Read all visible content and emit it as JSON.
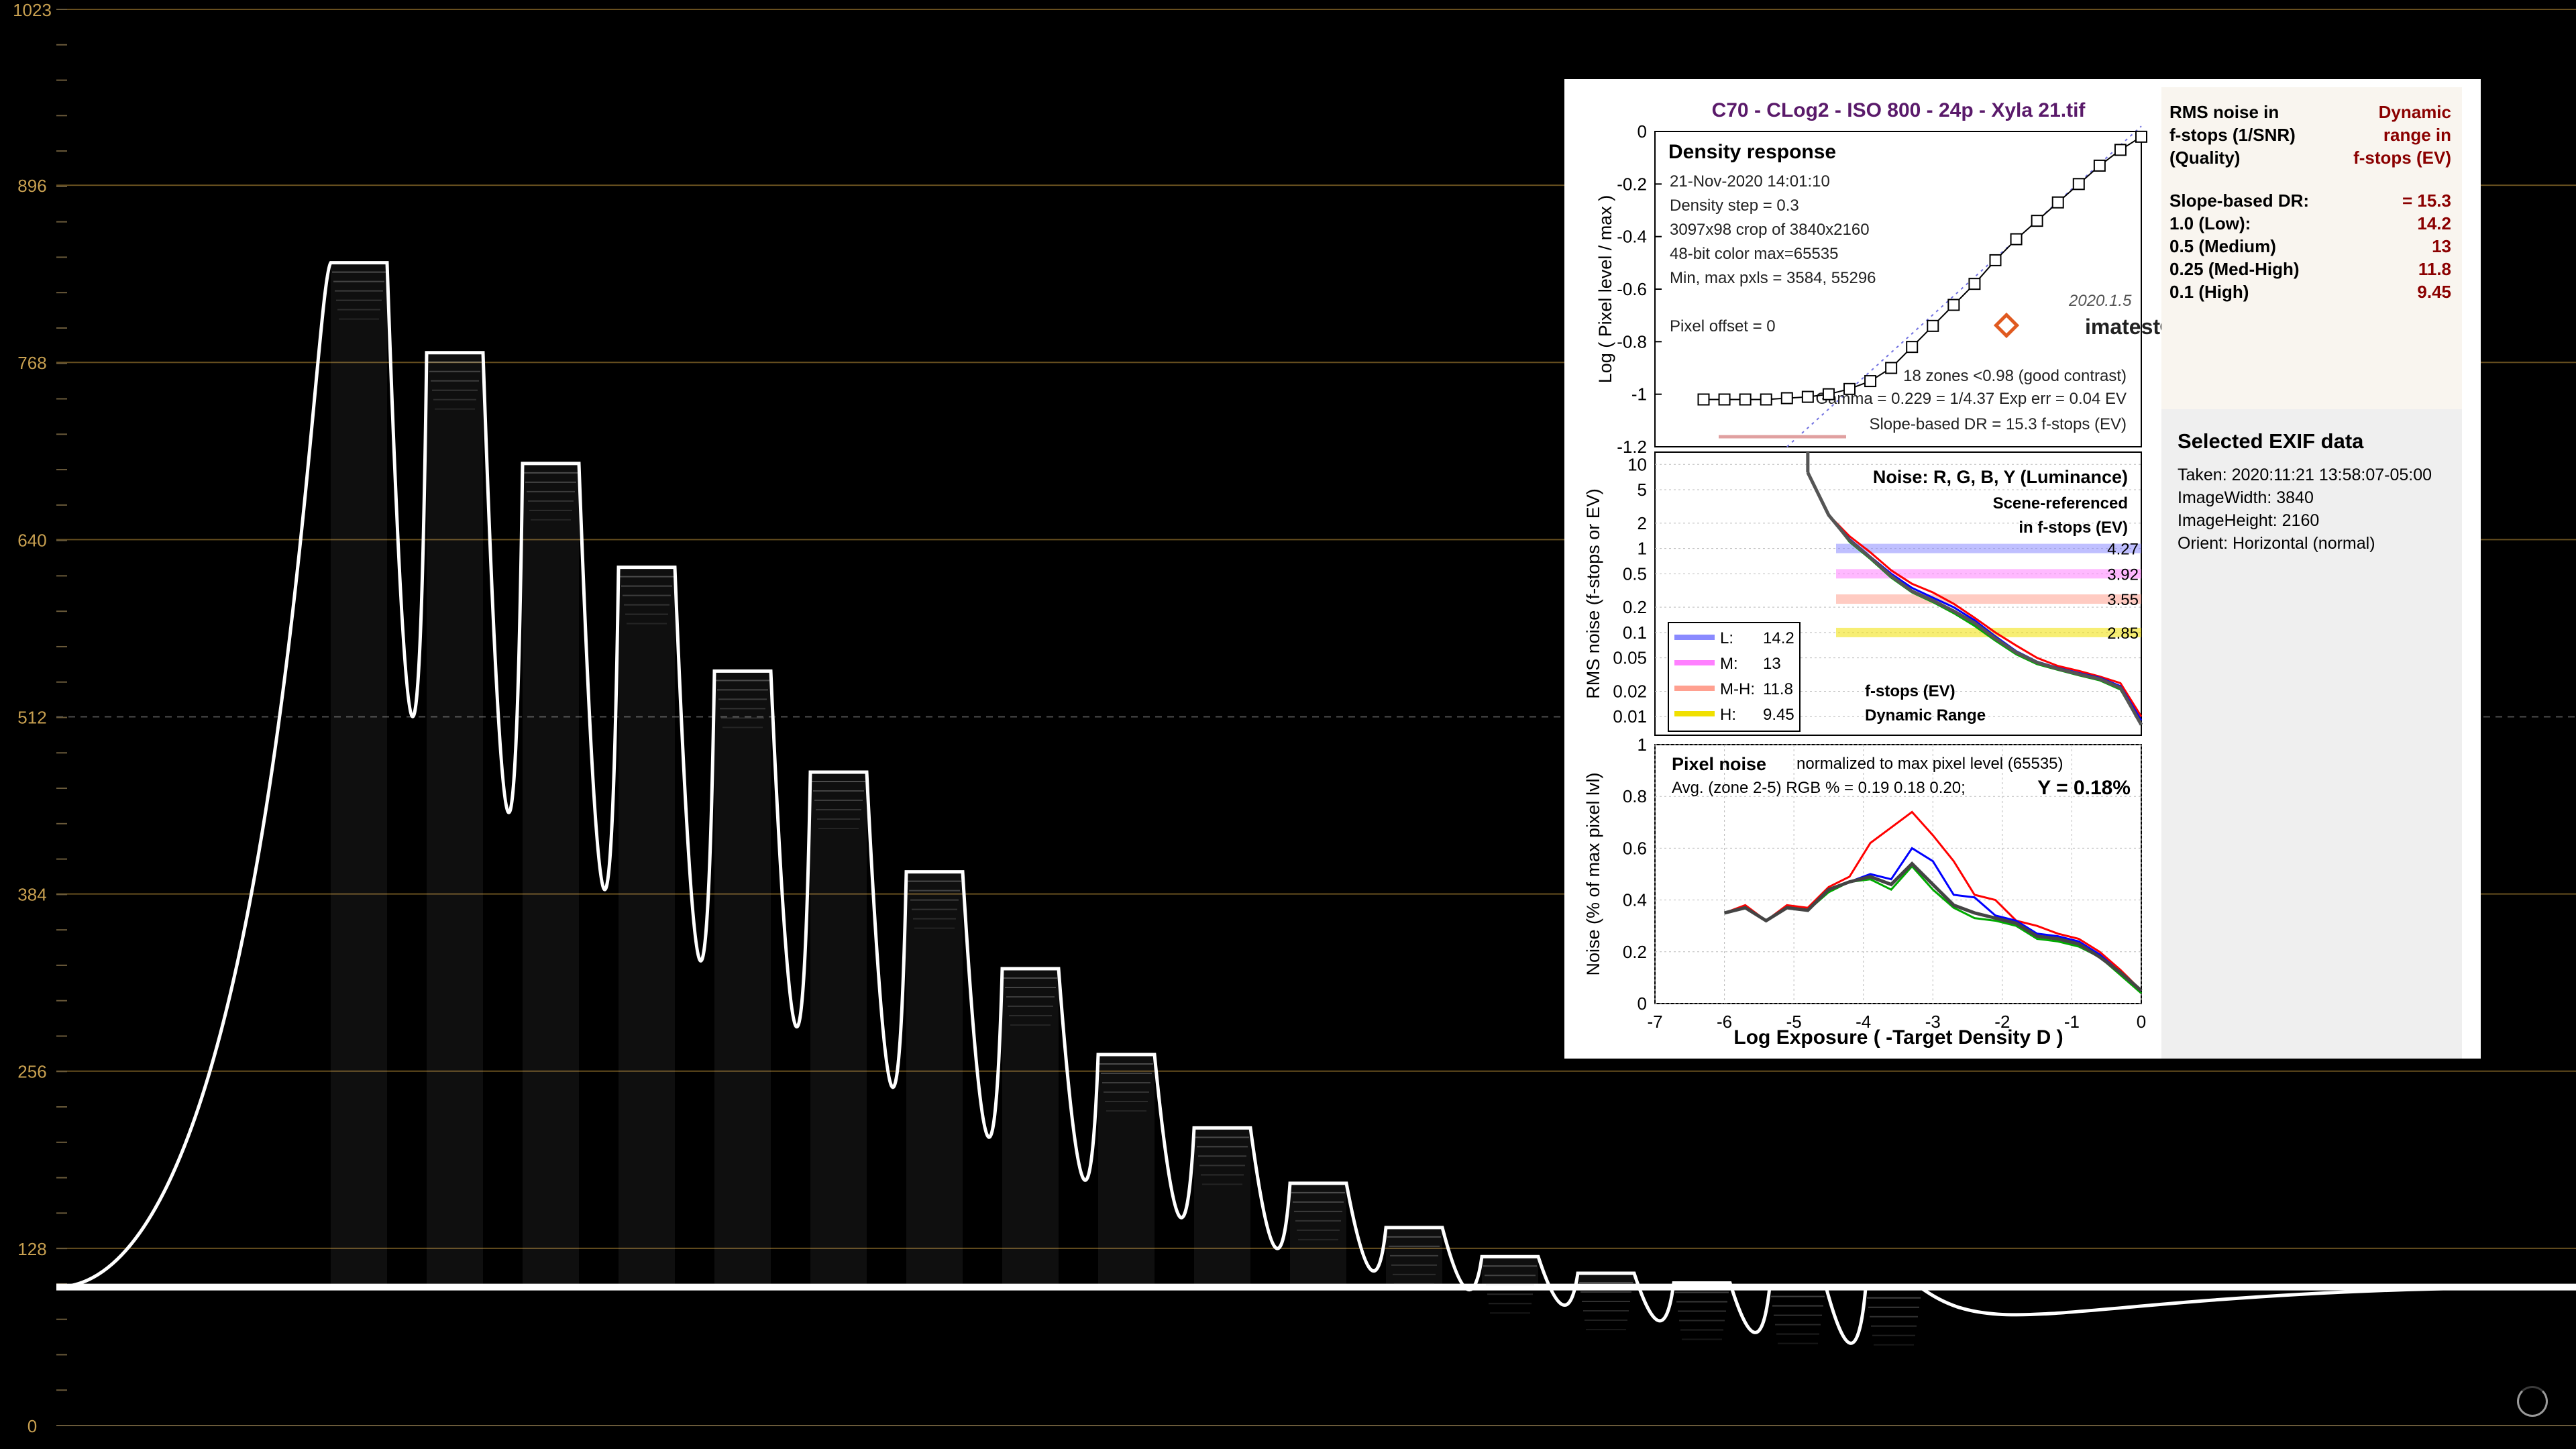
{
  "waveform": {
    "y_ticks": [
      "1023",
      "896",
      "768",
      "640",
      "512",
      "384",
      "256",
      "128",
      "0"
    ],
    "grid_color": "#8a6a2a",
    "tick_color": "#c8a050",
    "trace_color": "#ffffff",
    "chart_data": {
      "type": "line",
      "ylim": [
        0,
        1023
      ],
      "xlabel": "",
      "ylabel": "",
      "step_peaks": [
        840,
        775,
        695,
        620,
        545,
        472,
        400,
        330,
        268,
        215,
        175,
        143,
        122,
        110,
        103,
        100,
        99
      ],
      "baseline": 100
    }
  },
  "panel": {
    "title": "C70 - CLog2 - ISO 800 - 24p - Xyla 21.tif",
    "title_color": "#5a1a6a",
    "density": {
      "heading": "Density response",
      "info": [
        "21-Nov-2020 14:01:10",
        "Density step = 0.3",
        "3097x98 crop of 3840x2160",
        "48-bit color  max=65535",
        "Min, max pxls = 3584, 55296",
        "",
        "Pixel offset = 0"
      ],
      "version": "2020.1.5",
      "brand": "imatest",
      "zones_text": "18 zones <0.98 (good contrast)",
      "gamma_text": "Gamma = 0.229 = 1/4.37  Exp err = 0.04 EV",
      "dr_text": "Slope-based DR = 15.3 f-stops (EV)",
      "ylabel": "Log ( Pixel level / max )",
      "y_ticks": [
        "0",
        "-0.2",
        "-0.4",
        "-0.6",
        "-0.8",
        "-1",
        "-1.2"
      ],
      "chart_data": {
        "type": "line",
        "x": [
          -6.3,
          -6.0,
          -5.7,
          -5.4,
          -5.1,
          -4.8,
          -4.5,
          -4.2,
          -3.9,
          -3.6,
          -3.3,
          -3.0,
          -2.7,
          -2.4,
          -2.1,
          -1.8,
          -1.5,
          -1.2,
          -0.9,
          -0.6,
          -0.3,
          0.0
        ],
        "y": [
          -1.02,
          -1.02,
          -1.02,
          -1.02,
          -1.015,
          -1.01,
          -1.0,
          -0.98,
          -0.95,
          -0.9,
          -0.82,
          -0.74,
          -0.66,
          -0.58,
          -0.49,
          -0.41,
          -0.34,
          -0.27,
          -0.2,
          -0.13,
          -0.07,
          -0.02
        ],
        "xlim": [
          -7,
          0
        ],
        "ylim": [
          -1.2,
          0
        ]
      }
    },
    "noise": {
      "heading": "Noise: R, G, B, Y (Luminance)",
      "subheading1": "Scene-referenced",
      "subheading2": "in f-stops (EV)",
      "ylabel": "RMS noise (f-stops or EV)",
      "y_ticks": [
        "10",
        "5",
        "2",
        "1",
        "0.5",
        "0.2",
        "0.1",
        "0.05",
        "0.02",
        "0.01"
      ],
      "band_values": [
        "4.27",
        "3.92",
        "3.55",
        "2.85"
      ],
      "dr_label1": "f-stops (EV)",
      "dr_label2": "Dynamic Range",
      "legend": [
        {
          "key": "L:",
          "value": "14.2",
          "color": "#8a8aff"
        },
        {
          "key": "M:",
          "value": "13",
          "color": "#ff80ff"
        },
        {
          "key": "M-H:",
          "value": "11.8",
          "color": "#ffa090"
        },
        {
          "key": "H:",
          "value": "9.45",
          "color": "#f0e000"
        }
      ],
      "chart_data": {
        "type": "line",
        "x": [
          -4.8,
          -4.5,
          -4.2,
          -3.9,
          -3.6,
          -3.3,
          -3.0,
          -2.7,
          -2.4,
          -2.1,
          -1.8,
          -1.5,
          -1.2,
          -0.9,
          -0.6,
          -0.3,
          0.0
        ],
        "series": [
          {
            "color": "#ff0000",
            "values": [
              8.0,
              2.5,
              1.4,
              0.9,
              0.55,
              0.38,
              0.3,
              0.22,
              0.15,
              0.1,
              0.07,
              0.05,
              0.04,
              0.035,
              0.03,
              0.025,
              0.01
            ]
          },
          {
            "color": "#0000ff",
            "values": [
              8.0,
              2.5,
              1.3,
              0.8,
              0.5,
              0.34,
              0.26,
              0.2,
              0.14,
              0.09,
              0.06,
              0.045,
              0.038,
              0.033,
              0.029,
              0.023,
              0.009
            ]
          },
          {
            "color": "#00aa00",
            "values": [
              8.0,
              2.5,
              1.2,
              0.75,
              0.45,
              0.3,
              0.23,
              0.17,
              0.12,
              0.08,
              0.055,
              0.042,
              0.036,
              0.031,
              0.027,
              0.021,
              0.008
            ]
          },
          {
            "color": "#555555",
            "values": [
              8.0,
              2.5,
              1.25,
              0.78,
              0.47,
              0.31,
              0.24,
              0.18,
              0.13,
              0.085,
              0.058,
              0.044,
              0.037,
              0.032,
              0.028,
              0.022,
              0.008
            ]
          }
        ]
      }
    },
    "pixel": {
      "heading": "Pixel noise",
      "note": "normalized to max pixel level (65535)",
      "avg_text": "Avg. (zone 2-5) RGB % = 0.19  0.18  0.20;",
      "y_text": "Y = 0.18%",
      "ylabel": "Noise (% of max pixel lvl)",
      "y_ticks": [
        "1",
        "0.8",
        "0.6",
        "0.4",
        "0.2",
        "0"
      ],
      "x_ticks": [
        "-7",
        "-6",
        "-5",
        "-4",
        "-3",
        "-2",
        "-1",
        "0"
      ],
      "xlabel": "Log Exposure ( -Target Density D )",
      "chart_data": {
        "type": "line",
        "x": [
          -6.0,
          -5.7,
          -5.4,
          -5.1,
          -4.8,
          -4.5,
          -4.2,
          -3.9,
          -3.6,
          -3.3,
          -3.0,
          -2.7,
          -2.4,
          -2.1,
          -1.8,
          -1.5,
          -1.2,
          -0.9,
          -0.6,
          -0.3,
          0.0
        ],
        "series": [
          {
            "color": "#ff0000",
            "values": [
              0.35,
              0.38,
              0.32,
              0.38,
              0.37,
              0.45,
              0.49,
              0.62,
              0.68,
              0.74,
              0.65,
              0.55,
              0.42,
              0.4,
              0.32,
              0.3,
              0.27,
              0.25,
              0.2,
              0.13,
              0.05
            ]
          },
          {
            "color": "#0000ff",
            "values": [
              0.35,
              0.37,
              0.32,
              0.37,
              0.36,
              0.44,
              0.47,
              0.5,
              0.48,
              0.6,
              0.55,
              0.42,
              0.41,
              0.34,
              0.32,
              0.27,
              0.26,
              0.24,
              0.19,
              0.12,
              0.05
            ]
          },
          {
            "color": "#00aa00",
            "values": [
              0.35,
              0.37,
              0.32,
              0.37,
              0.36,
              0.43,
              0.47,
              0.48,
              0.44,
              0.53,
              0.44,
              0.37,
              0.33,
              0.32,
              0.3,
              0.25,
              0.24,
              0.22,
              0.18,
              0.11,
              0.04
            ]
          },
          {
            "color": "#444444",
            "values": [
              0.35,
              0.37,
              0.32,
              0.37,
              0.36,
              0.44,
              0.47,
              0.49,
              0.46,
              0.54,
              0.46,
              0.38,
              0.35,
              0.33,
              0.31,
              0.26,
              0.25,
              0.23,
              0.18,
              0.12,
              0.05
            ]
          }
        ],
        "xlim": [
          -7,
          0
        ],
        "ylim": [
          0,
          1
        ]
      }
    }
  },
  "rms_box": {
    "header_left": [
      "RMS noise in",
      "f-stops (1/SNR)",
      "(Quality)"
    ],
    "header_right": [
      "Dynamic",
      "range in",
      "f-stops (EV)"
    ],
    "rows": [
      {
        "label": "Slope-based DR:",
        "value": "= 15.3"
      },
      {
        "label": "1.0   (Low):",
        "value": "14.2"
      },
      {
        "label": "0.5   (Medium)",
        "value": "13"
      },
      {
        "label": "0.25 (Med-High)",
        "value": "11.8"
      },
      {
        "label": "0.1   (High)",
        "value": "9.45"
      }
    ]
  },
  "exif": {
    "title": "Selected EXIF data",
    "lines": [
      "Taken: 2020:11:21 13:58:07-05:00",
      "ImageWidth:  3840",
      "ImageHeight:  2160",
      "Orient: Horizontal (normal)"
    ]
  }
}
